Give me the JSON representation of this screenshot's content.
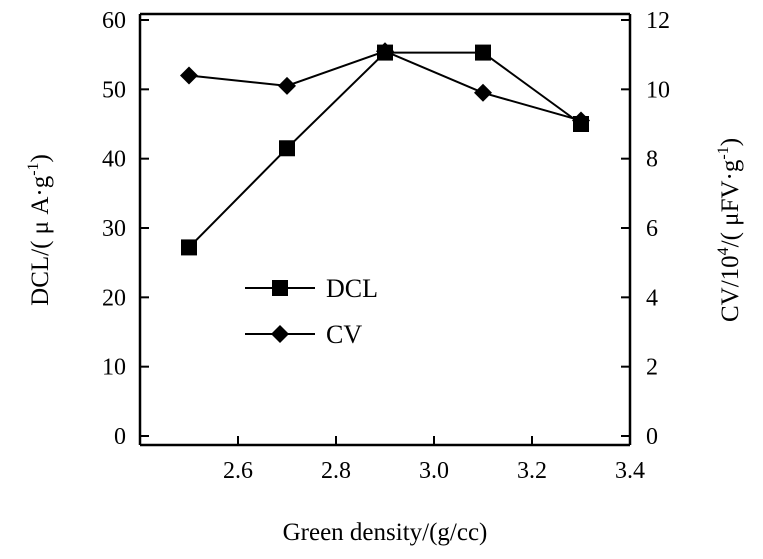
{
  "chart_data": {
    "type": "line",
    "xlabel": "Green density/(g/cc)",
    "ylabel_left": "DCL/( μ A·g",
    "ylabel_left_sup": "-1",
    "ylabel_left_tail": ")",
    "ylabel_right": "CV/10",
    "ylabel_right_sup1": "4",
    "ylabel_right_mid": "/( μFV·g",
    "ylabel_right_sup2": "-1",
    "ylabel_right_tail": ")",
    "x_ticks": [
      "2.6",
      "2.8",
      "3.0",
      "3.2",
      "3.4"
    ],
    "y_left_ticks": [
      "0",
      "10",
      "20",
      "30",
      "40",
      "50",
      "60"
    ],
    "y_right_ticks": [
      "0",
      "2",
      "4",
      "6",
      "8",
      "10",
      "12"
    ],
    "xlim": [
      2.4,
      3.4
    ],
    "ylim_left": [
      0,
      60
    ],
    "ylim_right": [
      0,
      12
    ],
    "legend_position": "center-left",
    "series": [
      {
        "name": "DCL",
        "axis": "left",
        "marker": "square",
        "x": [
          2.5,
          2.7,
          2.9,
          3.1,
          3.3
        ],
        "y": [
          27.2,
          41.5,
          55.3,
          55.3,
          45.0
        ]
      },
      {
        "name": "CV",
        "axis": "right",
        "marker": "diamond",
        "x": [
          2.5,
          2.7,
          2.9,
          3.1,
          3.3
        ],
        "y": [
          10.4,
          10.1,
          11.1,
          9.9,
          9.1
        ]
      }
    ]
  }
}
